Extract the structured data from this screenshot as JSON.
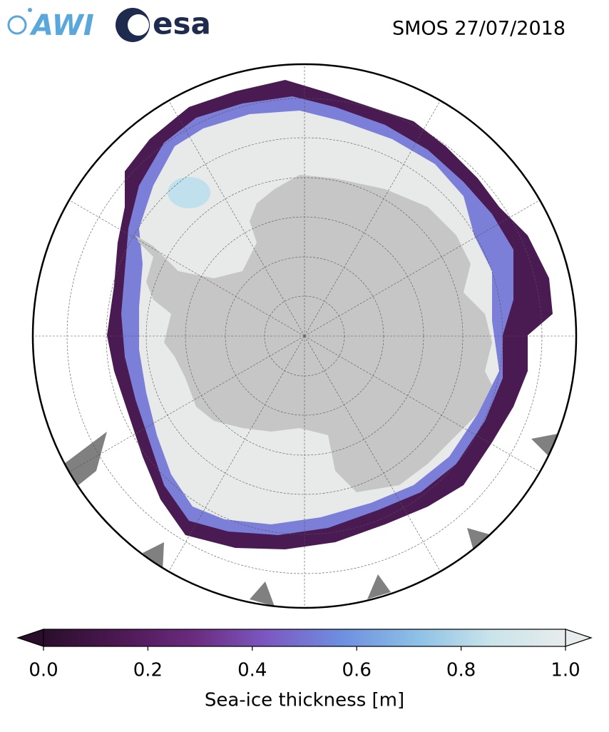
{
  "logos": {
    "left": "AWI",
    "right": "esa"
  },
  "title": "SMOS 27/07/2018",
  "colorbar": {
    "label": "Sea-ice thickness [m]",
    "lim": [
      0,
      1
    ],
    "ticks": [
      {
        "value": 0,
        "label": "0.0"
      },
      {
        "value": 0.2,
        "label": "0.2"
      },
      {
        "value": 0.4,
        "label": "0.4"
      },
      {
        "value": 0.6,
        "label": "0.6"
      },
      {
        "value": 0.8,
        "label": "0.8"
      },
      {
        "value": 1,
        "label": "1.0"
      }
    ],
    "colors": [
      "#2a0e2c",
      "#4c1852",
      "#6a2a7e",
      "#7c58c2",
      "#6e8fe0",
      "#8cc0e6",
      "#c9e4ea",
      "#e8ecec"
    ]
  }
}
